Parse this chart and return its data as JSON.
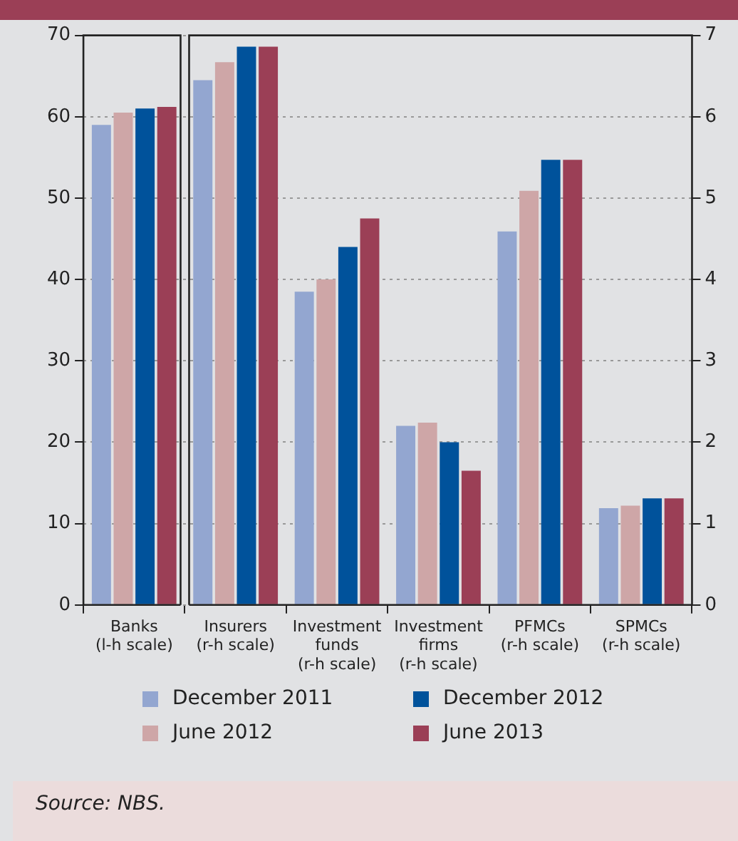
{
  "chart_data": {
    "type": "bar",
    "categories": [
      "Banks (l-h scale)",
      "Insurers (r-h scale)",
      "Investment funds (r-h scale)",
      "Investment firms (r-h scale)",
      "PFMCs (r-h scale)",
      "SPMCs (r-h scale)"
    ],
    "series": [
      {
        "name": "December 2011",
        "color": "#93a6d0",
        "axis": "y2",
        "values": [
          null,
          6.45,
          3.85,
          2.2,
          4.59,
          1.19
        ]
      },
      {
        "name": "June 2012",
        "color": "#cea6a7",
        "axis": "y2",
        "values": [
          null,
          6.67,
          4.0,
          2.24,
          5.09,
          1.22
        ]
      },
      {
        "name": "December 2012",
        "color": "#00529b",
        "axis": "y2",
        "values": [
          null,
          6.86,
          4.4,
          2.0,
          5.47,
          1.31
        ]
      },
      {
        "name": "June 2013",
        "color": "#9b3f56",
        "axis": "y2",
        "values": [
          null,
          6.86,
          4.75,
          1.65,
          5.47,
          1.31
        ]
      },
      {
        "color": "#93a6d0",
        "axis": "y",
        "values": [
          59,
          null,
          null,
          null,
          null,
          null
        ]
      },
      {
        "color": "#cea6a7",
        "axis": "y",
        "values": [
          60.5,
          null,
          null,
          null,
          null,
          null
        ]
      },
      {
        "color": "#00529b",
        "axis": "y",
        "values": [
          61,
          null,
          null,
          null,
          null,
          null
        ]
      },
      {
        "color": "#9b3f56",
        "axis": "y",
        "values": [
          61.2,
          null,
          null,
          null,
          null,
          null
        ]
      }
    ],
    "ylim": [
      0,
      70
    ],
    "yticks": [
      0,
      10,
      20,
      30,
      40,
      50,
      60,
      70
    ],
    "y2lim": [
      0,
      7
    ],
    "y2ticks": [
      0,
      1,
      2,
      3,
      4,
      5,
      6,
      7
    ],
    "grid": "y",
    "legend": "bottom",
    "annotations": [
      "Source: NBS."
    ]
  }
}
